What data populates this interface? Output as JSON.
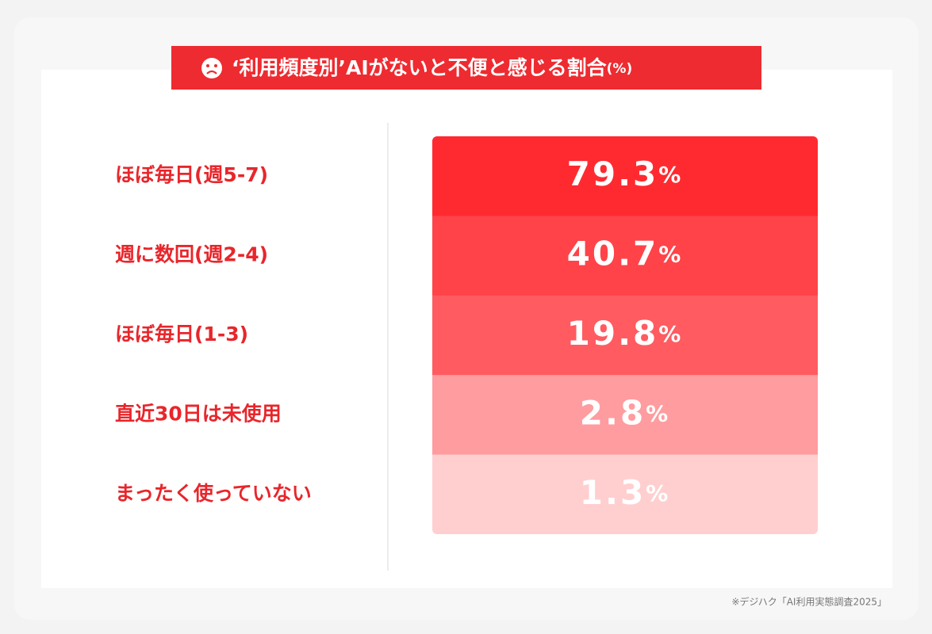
{
  "chart_data": {
    "type": "table",
    "title": "‘利用頻度別’AIがないと不便と感じる割合",
    "title_unit": "(%)",
    "categories": [
      "ほぼ毎日(週5-7)",
      "週に数回(週2-4)",
      "ほぼ毎日(1-3)",
      "直近30日は未使用",
      "まったく使っていない"
    ],
    "values": [
      79.3,
      40.7,
      19.8,
      2.8,
      1.3
    ],
    "value_labels": [
      "79.3%",
      "40.7%",
      "19.8%",
      "2.8%",
      "1.3%"
    ],
    "colors": [
      "#ff2a30",
      "#ff4349",
      "#ff5b60",
      "#ff9c9f",
      "#ffcfd0"
    ],
    "source": "※デジハク「AI利用実態調査2025」"
  }
}
